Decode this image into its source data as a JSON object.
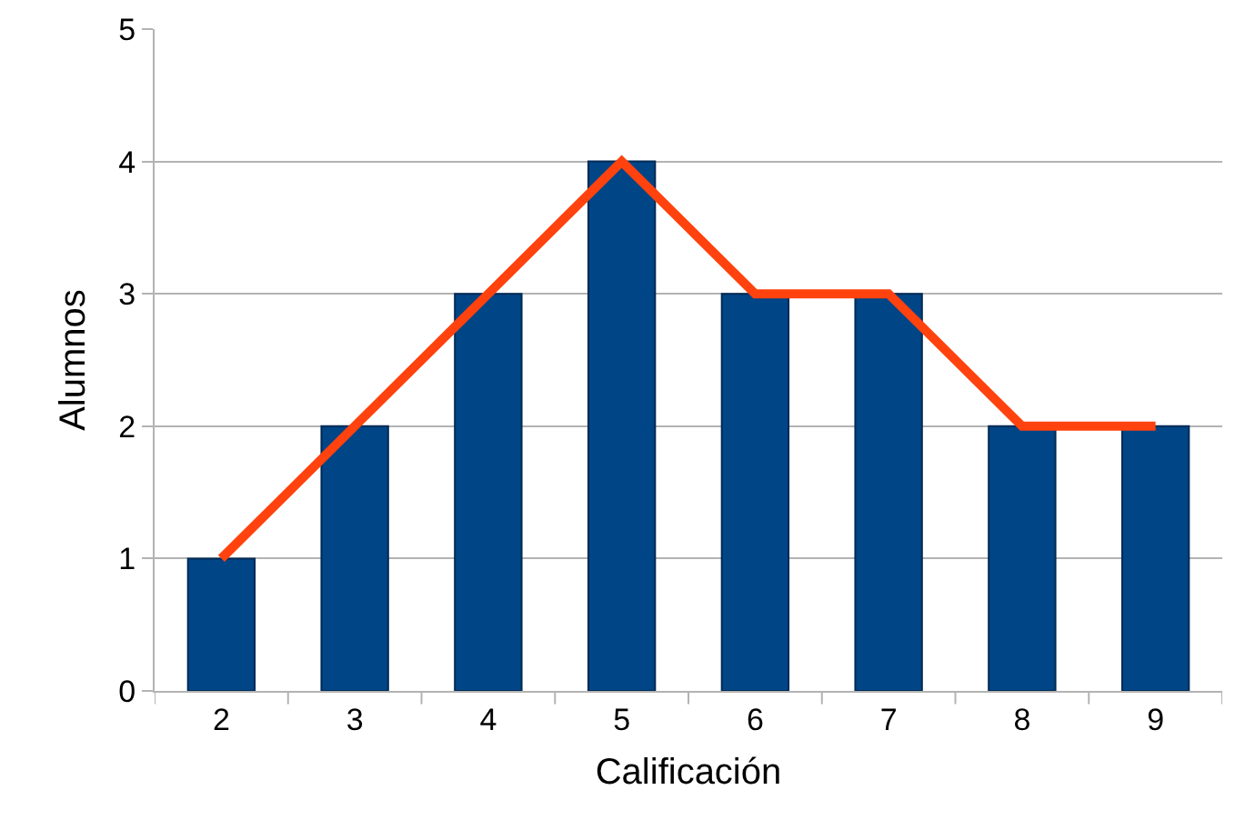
{
  "chart_data": {
    "type": "bar",
    "xlabel": "Calificación",
    "ylabel": "Alumnos",
    "categories": [
      "2",
      "3",
      "4",
      "5",
      "6",
      "7",
      "8",
      "9"
    ],
    "series": [
      {
        "color": "#004586",
        "values": [
          1,
          2,
          3,
          4,
          3,
          3,
          2,
          2
        ]
      },
      {
        "type": "line",
        "color": "#ff420e",
        "values": [
          1,
          2,
          3,
          4,
          3,
          3,
          2,
          2
        ]
      }
    ],
    "ylim": [
      0,
      5
    ],
    "yticks": [
      0,
      1,
      2,
      3,
      4,
      5
    ],
    "grid": "y",
    "legend": false,
    "marker": "none",
    "line_style": "solid"
  }
}
